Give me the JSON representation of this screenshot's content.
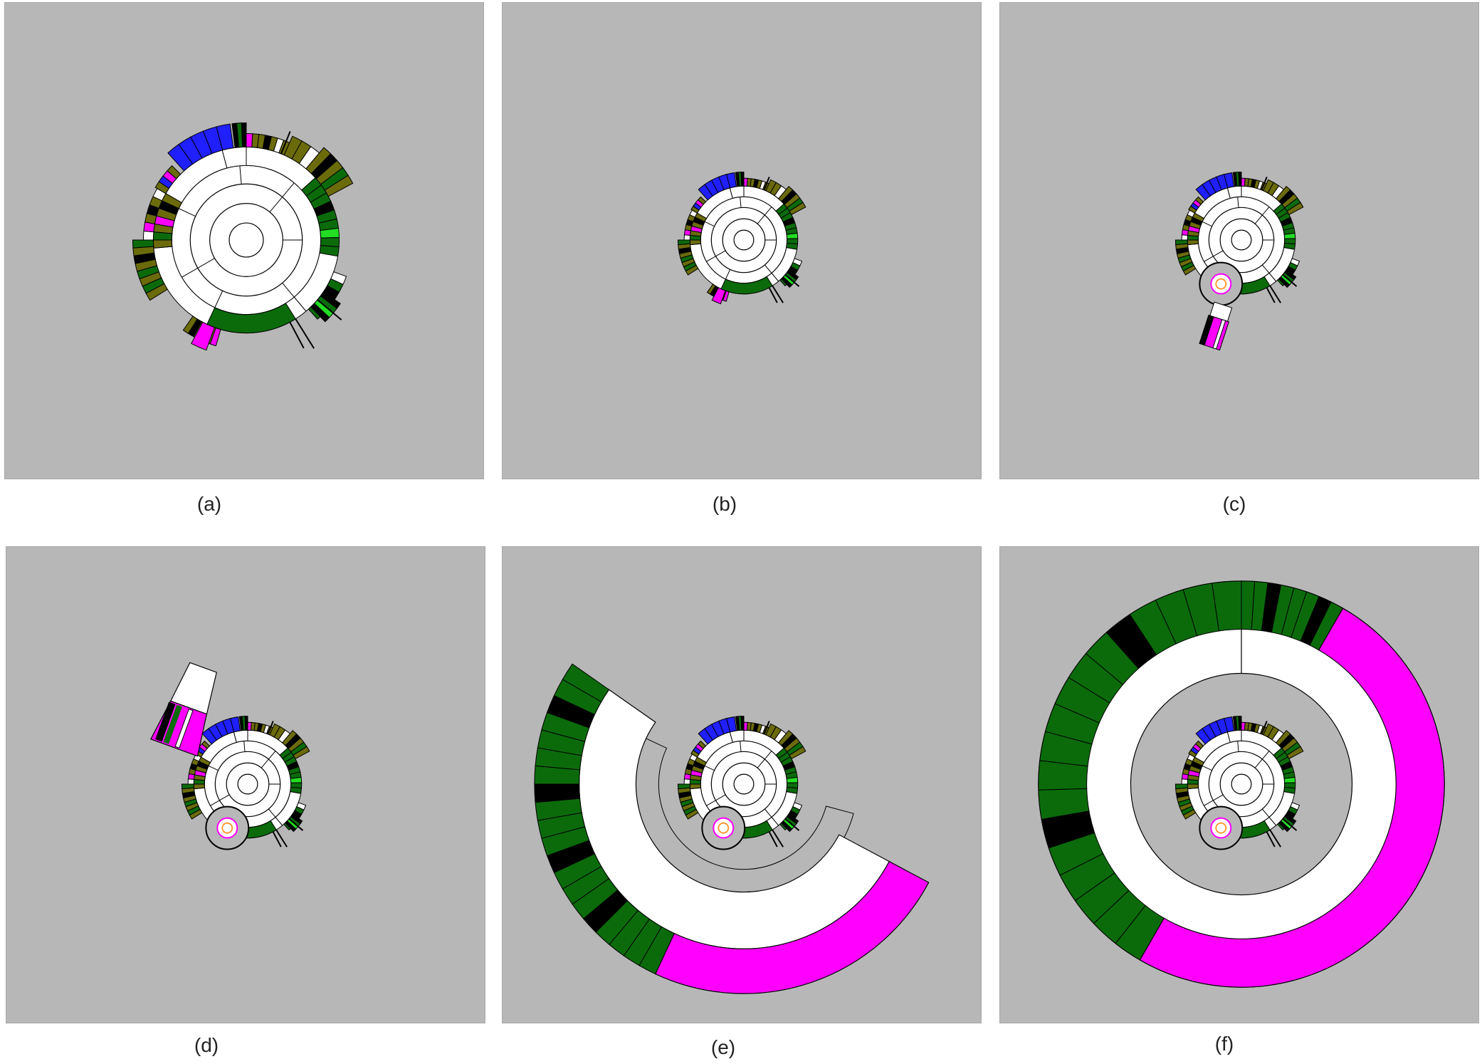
{
  "figure": {
    "panels": [
      {
        "id": "a",
        "caption": "(a)",
        "zoom": 1.0,
        "focus": "none"
      },
      {
        "id": "b",
        "caption": "(b)",
        "zoom": 0.58,
        "focus": "none"
      },
      {
        "id": "c",
        "caption": "(c)",
        "zoom": 0.58,
        "focus": "lens"
      },
      {
        "id": "d",
        "caption": "(d)",
        "zoom": 0.58,
        "focus": "detached"
      },
      {
        "id": "e",
        "caption": "(e)",
        "zoom": 0.58,
        "focus": "partial-ring"
      },
      {
        "id": "f",
        "caption": "(f)",
        "zoom": 0.58,
        "focus": "full-ring"
      }
    ]
  },
  "colors": {
    "background": "#b7b7b7",
    "node": "#ffffff",
    "dark_green": "#0b6b0b",
    "olive": "#6b6b0b",
    "blue": "#1f1fff",
    "magenta": "#ff00ff",
    "bright_green": "#22dd22",
    "black": "#000000",
    "orange": "#ff9933"
  }
}
